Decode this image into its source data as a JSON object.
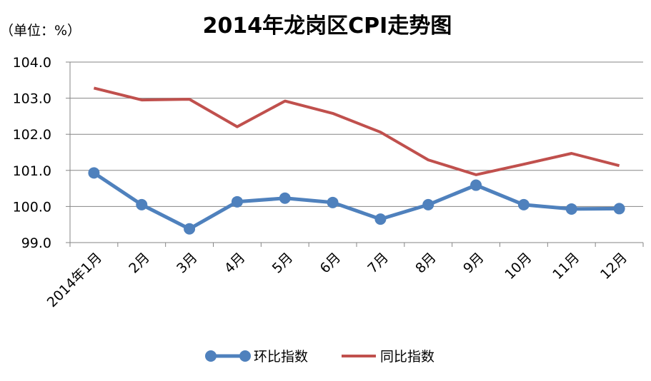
{
  "chart_data": {
    "type": "line",
    "title": "2014年龙岗区CPI走势图",
    "unit_label": "（单位：%）",
    "categories": [
      "2014年1月",
      "2月",
      "3月",
      "4月",
      "5月",
      "6月",
      "7月",
      "8月",
      "9月",
      "10月",
      "11月",
      "12月"
    ],
    "ylim": [
      99.0,
      104.0
    ],
    "yticks": [
      "99.0",
      "100.0",
      "101.0",
      "102.0",
      "103.0",
      "104.0"
    ],
    "grid": true,
    "legend_position": "bottom",
    "series": [
      {
        "name": "环比指数",
        "color": "#4F81BD",
        "marker": "circle",
        "values": [
          100.93,
          100.05,
          99.38,
          100.13,
          100.23,
          100.11,
          99.65,
          100.05,
          100.59,
          100.05,
          99.93,
          99.94
        ]
      },
      {
        "name": "同比指数",
        "color": "#C0504D",
        "marker": "none",
        "values": [
          103.28,
          102.95,
          102.97,
          102.21,
          102.92,
          102.58,
          102.06,
          101.29,
          100.88,
          101.17,
          101.47,
          101.13
        ]
      }
    ]
  }
}
